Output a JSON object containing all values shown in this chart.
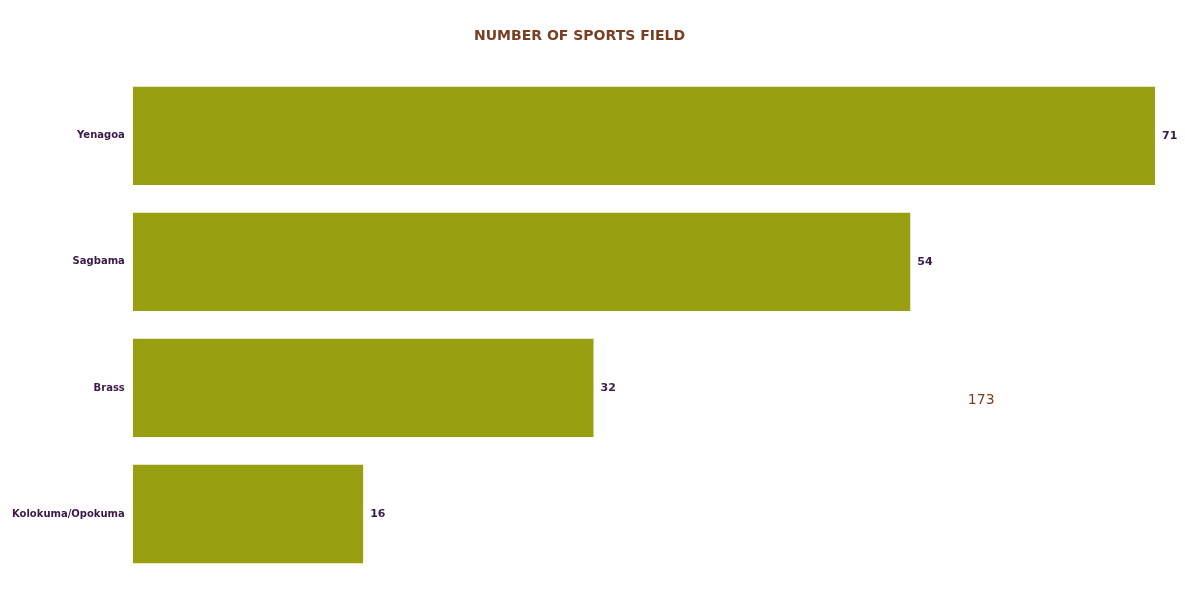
{
  "chart_data": {
    "type": "bar",
    "orientation": "horizontal",
    "title": "NUMBER OF SPORTS FIELD",
    "categories": [
      "Yenagoa",
      "Sagbama",
      "Brass",
      "Kolokuma/Opokuma"
    ],
    "values": [
      71,
      54,
      32,
      16
    ],
    "color": "#989f10",
    "data_labels": true,
    "annotations": [
      "173"
    ]
  }
}
